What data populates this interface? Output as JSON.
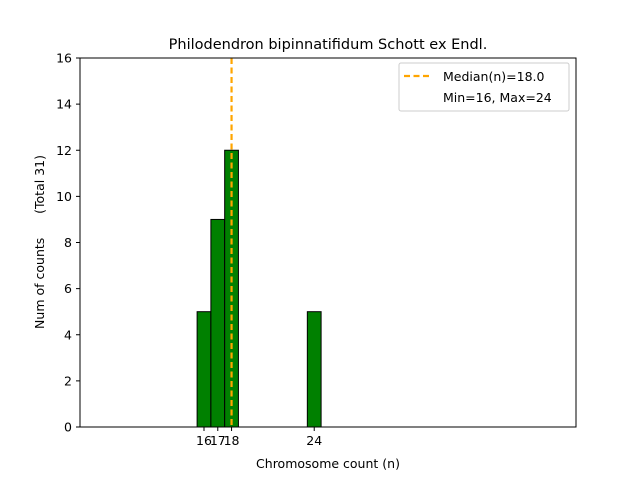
{
  "chart_data": {
    "type": "bar",
    "title": "Philodendron bipinnatifidum Schott ex Endl.",
    "xlabel": "Chromosome count (n)",
    "ylabel": "Num of counts      (Total 31)",
    "xlim": [
      7,
      43
    ],
    "ylim": [
      0,
      16
    ],
    "x_ticks": [
      16,
      17,
      18,
      24
    ],
    "y_ticks": [
      0,
      2,
      4,
      6,
      8,
      10,
      12,
      14,
      16
    ],
    "bin_width": 1,
    "bars": [
      {
        "x": 16,
        "count": 5
      },
      {
        "x": 17,
        "count": 9
      },
      {
        "x": 18,
        "count": 12
      },
      {
        "x": 19,
        "count": 0
      },
      {
        "x": 20,
        "count": 0
      },
      {
        "x": 21,
        "count": 0
      },
      {
        "x": 22,
        "count": 0
      },
      {
        "x": 23,
        "count": 0
      },
      {
        "x": 24,
        "count": 5
      },
      {
        "x": 25,
        "count": 0
      },
      {
        "x": 26,
        "count": 0
      },
      {
        "x": 27,
        "count": 0
      }
    ],
    "bar_color": "#008000",
    "median_line": {
      "x": 18.0,
      "color": "#FFA500"
    },
    "legend": {
      "placement": "top-right",
      "entries": [
        "Median(n)=18.0",
        "Min=16, Max=24"
      ]
    },
    "grid": false
  }
}
